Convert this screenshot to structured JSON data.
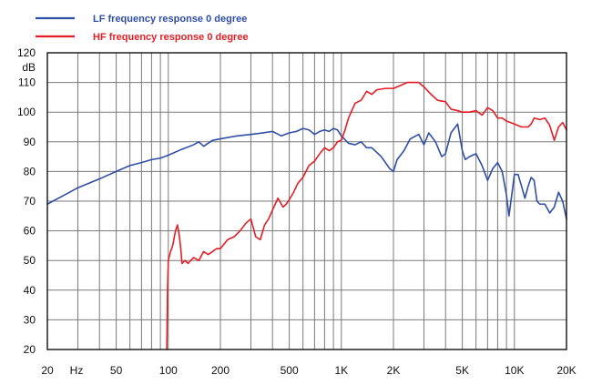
{
  "chart_data": {
    "type": "line",
    "title": "",
    "xlabel": "",
    "ylabel": "",
    "x_scale": "log",
    "xlim": [
      20,
      20000
    ],
    "ylim": [
      20,
      120
    ],
    "grid": true,
    "legend_position": "top-left",
    "y_unit_label": "dB",
    "x_unit_label": "Hz",
    "x_tick_labels": [
      {
        "value": 20,
        "label": "20"
      },
      {
        "value": 50,
        "label": "50"
      },
      {
        "value": 100,
        "label": "100"
      },
      {
        "value": 200,
        "label": "200"
      },
      {
        "value": 500,
        "label": "500"
      },
      {
        "value": 1000,
        "label": "1K"
      },
      {
        "value": 2000,
        "label": "2K"
      },
      {
        "value": 5000,
        "label": "5K"
      },
      {
        "value": 10000,
        "label": "10K"
      },
      {
        "value": 20000,
        "label": "20K"
      }
    ],
    "y_tick_labels": [
      "20",
      "30",
      "40",
      "50",
      "60",
      "70",
      "80",
      "90",
      "100",
      "110",
      "120"
    ],
    "series": [
      {
        "name": "LF frequency response 0 degree",
        "color": "#2f4ea5",
        "x": [
          20,
          25,
          30,
          40,
          50,
          60,
          70,
          80,
          90,
          100,
          120,
          140,
          150,
          160,
          180,
          200,
          250,
          300,
          350,
          400,
          450,
          500,
          550,
          600,
          650,
          700,
          750,
          800,
          850,
          900,
          950,
          1000,
          1100,
          1200,
          1300,
          1400,
          1500,
          1700,
          1900,
          2000,
          2100,
          2300,
          2500,
          2800,
          3000,
          3200,
          3500,
          3800,
          4000,
          4300,
          4700,
          5000,
          5200,
          5500,
          6000,
          6500,
          7000,
          7500,
          8000,
          8500,
          9000,
          9300,
          9600,
          10000,
          10500,
          11000,
          11500,
          12000,
          12500,
          13000,
          13500,
          14000,
          15000,
          16000,
          17000,
          18000,
          19000,
          20000
        ],
        "y": [
          69,
          72,
          74.5,
          77.5,
          80,
          82,
          83,
          84,
          84.5,
          85.5,
          87.5,
          89,
          90,
          88.5,
          90.5,
          91,
          92,
          92.5,
          93,
          93.5,
          92,
          93,
          93.5,
          94.5,
          94,
          92.5,
          93.5,
          94,
          93.5,
          94.5,
          94,
          92,
          89.5,
          89,
          90,
          88,
          88,
          85,
          81,
          80,
          84,
          87,
          91,
          92.5,
          89,
          93,
          90,
          85,
          86,
          93,
          96,
          87,
          84,
          85,
          86,
          82,
          77,
          81,
          83,
          80,
          72,
          65,
          71,
          79,
          79,
          75,
          71,
          75,
          78,
          77,
          70,
          69,
          69,
          66,
          68,
          73,
          70,
          64
        ]
      },
      {
        "name": "HF frequency response 0 degree",
        "color": "#e31e24",
        "x": [
          98,
          99,
          100,
          103,
          106,
          110,
          113,
          116,
          118,
          120,
          125,
          130,
          140,
          150,
          160,
          170,
          180,
          190,
          200,
          220,
          240,
          260,
          280,
          300,
          320,
          340,
          360,
          380,
          400,
          430,
          460,
          480,
          500,
          530,
          560,
          600,
          650,
          700,
          750,
          800,
          850,
          900,
          950,
          1000,
          1050,
          1100,
          1200,
          1300,
          1400,
          1500,
          1600,
          1800,
          2000,
          2200,
          2400,
          2600,
          2800,
          3000,
          3300,
          3600,
          4000,
          4300,
          4700,
          5000,
          5500,
          6000,
          6500,
          7000,
          7500,
          8000,
          8500,
          9000,
          10000,
          11000,
          12000,
          12500,
          13000,
          14000,
          15000,
          16000,
          17000,
          18000,
          19000,
          20000
        ],
        "y": [
          20,
          40,
          50,
          53,
          55,
          60,
          62,
          58,
          54,
          49,
          50,
          49,
          51,
          50,
          53,
          52,
          53,
          54,
          54,
          57,
          58,
          60,
          62.5,
          64,
          58,
          57,
          62,
          64,
          67,
          71,
          68,
          69,
          70.5,
          73,
          76,
          78,
          82,
          83.5,
          86,
          88,
          87,
          88,
          90,
          90.5,
          94,
          98,
          103,
          104,
          107,
          106,
          107.5,
          108,
          108,
          109,
          110,
          110,
          110,
          108.5,
          106,
          104,
          103.5,
          101,
          100.5,
          100,
          100,
          100.5,
          99,
          101.5,
          100.5,
          98,
          98,
          97,
          96,
          95,
          95,
          96,
          98,
          97.5,
          98,
          95.5,
          90.5,
          95,
          96.5,
          94
        ]
      }
    ]
  }
}
